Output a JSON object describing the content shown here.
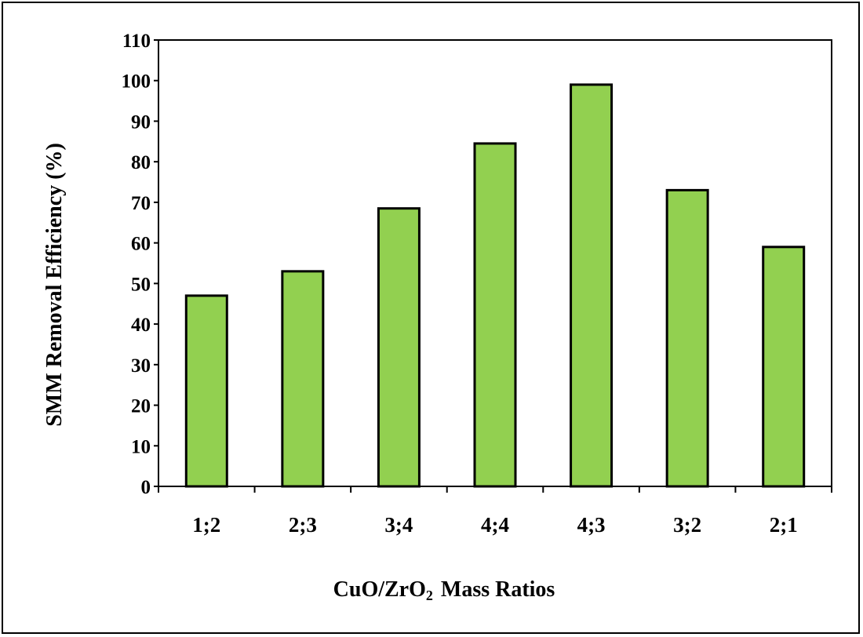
{
  "chart_data": {
    "type": "bar",
    "categories": [
      "1;2",
      "2;3",
      "3;4",
      "4;4",
      "4;3",
      "3;2",
      "2;1"
    ],
    "values": [
      47,
      53,
      68.5,
      84.5,
      99,
      73,
      59
    ],
    "title": "",
    "xlabel_main": "CuO/ZrO",
    "xlabel_sub": "2",
    "xlabel_tail": "Mass Ratios",
    "ylabel": "SMM Removal Efficiency (%)",
    "ylim": [
      0,
      110
    ],
    "yticks": [
      "0",
      "10",
      "20",
      "30",
      "40",
      "50",
      "60",
      "70",
      "80",
      "90",
      "100",
      "110"
    ],
    "grid": false,
    "bar_color": "#92d050",
    "bar_edge_color": "#000000"
  }
}
